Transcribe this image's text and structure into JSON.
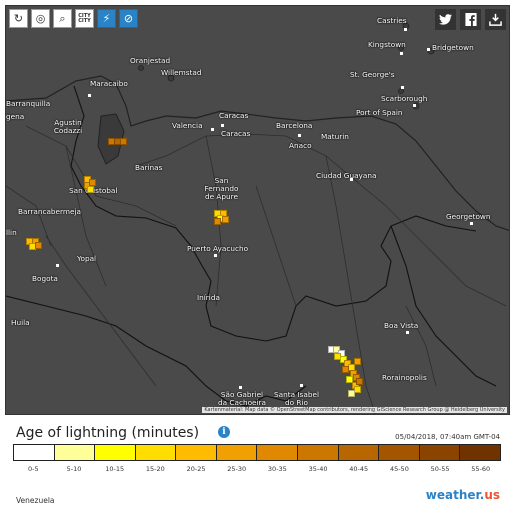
{
  "toolbar": {
    "buttons": [
      {
        "icon": "refresh-icon"
      },
      {
        "icon": "globe-icon"
      },
      {
        "icon": "zoom-out-icon"
      },
      {
        "icon": "city-toggle-icon",
        "label": "CITY CITY"
      },
      {
        "icon": "lightning-icon"
      },
      {
        "icon": "lightning-off-icon"
      }
    ]
  },
  "share": {
    "buttons": [
      {
        "icon": "twitter-icon"
      },
      {
        "icon": "facebook-icon"
      },
      {
        "icon": "download-icon"
      }
    ]
  },
  "cities": [
    "Castries",
    "Kingstown",
    "Bridgetown",
    "Oranjestad",
    "Willemstad",
    "St. George's",
    "Scarborough",
    "Barranquilla",
    "Maracaibo",
    "Port of Spain",
    "Agustin Codazzi",
    "Valencia",
    "Caracas",
    "Caracas",
    "Barcelona",
    "Maturin",
    "Anaco",
    "Barinas",
    "San Cristobal",
    "San Fernando de Apure",
    "Ciudad Guayana",
    "Barrancabermeja",
    "Georgetown",
    "Puerto Ayacucho",
    "Yopal",
    "Bogota",
    "Inírida",
    "Boa Vista",
    "Huila",
    "Rorainopolis",
    "São Gabriel da Cachoeira",
    "Santa Isabel do Rio"
  ],
  "city_fragments": [
    "gena",
    "llin"
  ],
  "attribution": "Kartenmaterial: Map data © OpenStreetMap contributors, rendering GIScience Research Group @ Heidelberg University",
  "legend": {
    "title": "Age of lightning (minutes)",
    "timestamp": "05/04/2018, 07:40am GMT-04",
    "bins": [
      {
        "label": "0-5",
        "color": "#ffffff"
      },
      {
        "label": "5-10",
        "color": "#ffff99"
      },
      {
        "label": "10-15",
        "color": "#ffff00"
      },
      {
        "label": "15-20",
        "color": "#ffdd00"
      },
      {
        "label": "20-25",
        "color": "#ffbb00"
      },
      {
        "label": "25-30",
        "color": "#f0a000"
      },
      {
        "label": "30-35",
        "color": "#e08800"
      },
      {
        "label": "35-40",
        "color": "#cc7700"
      },
      {
        "label": "40-45",
        "color": "#b86600"
      },
      {
        "label": "45-50",
        "color": "#a35500"
      },
      {
        "label": "50-55",
        "color": "#8a4400"
      },
      {
        "label": "55-60",
        "color": "#703300"
      }
    ]
  },
  "footer": {
    "region": "Venezuela",
    "brand_main": "weather.",
    "brand_suffix": "us"
  }
}
